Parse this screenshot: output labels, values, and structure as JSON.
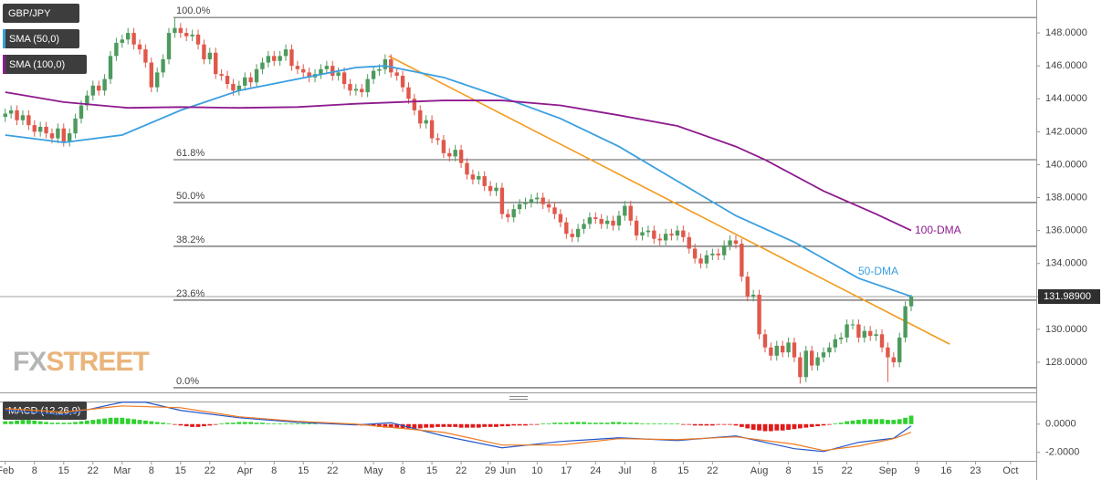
{
  "chart_data": {
    "type": "candlestick",
    "symbol": "GBP/JPY",
    "watermark": [
      "FX",
      "STREET"
    ],
    "up_color": "#4d9a5d",
    "down_color": "#e0584b",
    "xlim": [
      -0.9,
      176.4
    ],
    "xticks": [
      {
        "value": 0,
        "label": "Feb"
      },
      {
        "value": 5,
        "label": "8"
      },
      {
        "value": 10,
        "label": "15"
      },
      {
        "value": 15,
        "label": "22"
      },
      {
        "value": 20,
        "label": "Mar"
      },
      {
        "value": 25,
        "label": "8"
      },
      {
        "value": 30,
        "label": "15"
      },
      {
        "value": 35,
        "label": "22"
      },
      {
        "value": 41,
        "label": "Apr"
      },
      {
        "value": 46,
        "label": "8"
      },
      {
        "value": 51,
        "label": "15"
      },
      {
        "value": 56,
        "label": "22"
      },
      {
        "value": 63,
        "label": "May"
      },
      {
        "value": 68,
        "label": "8"
      },
      {
        "value": 73,
        "label": "15"
      },
      {
        "value": 78,
        "label": "22"
      },
      {
        "value": 83,
        "label": "29"
      },
      {
        "value": 86,
        "label": "Jun"
      },
      {
        "value": 91,
        "label": "10"
      },
      {
        "value": 96,
        "label": "17"
      },
      {
        "value": 101,
        "label": "24"
      },
      {
        "value": 106,
        "label": "Jul"
      },
      {
        "value": 111,
        "label": "8"
      },
      {
        "value": 116,
        "label": "15"
      },
      {
        "value": 121,
        "label": "22"
      },
      {
        "value": 129,
        "label": "Aug"
      },
      {
        "value": 134,
        "label": "8"
      },
      {
        "value": 139,
        "label": "15"
      },
      {
        "value": 144,
        "label": "22"
      },
      {
        "value": 151,
        "label": "Sep"
      },
      {
        "value": 156,
        "label": "9"
      },
      {
        "value": 161,
        "label": "16"
      },
      {
        "value": 166,
        "label": "23"
      },
      {
        "value": 172,
        "label": "Oct"
      }
    ],
    "ylim": [
      126.17,
      150.0
    ],
    "yticks": [
      {
        "value": 128,
        "label": "128.0000"
      },
      {
        "value": 130,
        "label": "130.0000"
      },
      {
        "value": 132,
        "label": "132.0000"
      },
      {
        "value": 134,
        "label": "134.0000"
      },
      {
        "value": 136,
        "label": "136.0000"
      },
      {
        "value": 138,
        "label": "138.0000"
      },
      {
        "value": 140,
        "label": "140.0000"
      },
      {
        "value": 142,
        "label": "142.0000"
      },
      {
        "value": 144,
        "label": "144.0000"
      },
      {
        "value": 146,
        "label": "146.0000"
      },
      {
        "value": 148,
        "label": "148.0000"
      }
    ],
    "open": [
      142.9,
      143.1,
      143.3,
      142.7,
      143.0,
      142.4,
      142.0,
      142.3,
      141.9,
      141.6,
      142.2,
      141.4,
      141.9,
      142.8,
      143.6,
      144.2,
      144.8,
      144.5,
      145.2,
      146.6,
      147.4,
      147.6,
      148.0,
      147.3,
      147.0,
      146.2,
      144.7,
      145.6,
      146.4,
      148.0,
      148.3,
      148.0,
      147.8,
      147.9,
      147.3,
      146.4,
      146.8,
      145.5,
      145.4,
      144.9,
      144.5,
      144.8,
      145.3,
      145.0,
      145.8,
      146.2,
      146.6,
      146.3,
      146.6,
      147.0,
      146.0,
      145.8,
      145.6,
      145.3,
      145.5,
      145.8,
      146.0,
      145.4,
      145.6,
      144.9,
      144.5,
      144.6,
      144.4,
      145.2,
      145.7,
      145.8,
      146.4,
      145.6,
      145.4,
      144.7,
      144.0,
      143.3,
      142.5,
      142.7,
      141.6,
      141.5,
      140.7,
      140.5,
      140.9,
      140.1,
      139.4,
      139.1,
      139.3,
      138.7,
      138.4,
      138.6,
      137.0,
      136.8,
      137.3,
      137.6,
      137.7,
      137.9,
      138.0,
      137.6,
      137.4,
      137.0,
      136.5,
      135.8,
      135.6,
      136.1,
      136.4,
      136.8,
      136.7,
      136.4,
      136.6,
      136.3,
      136.9,
      137.5,
      136.6,
      135.7,
      135.9,
      136.0,
      135.5,
      135.4,
      135.8,
      135.7,
      136.0,
      135.6,
      134.9,
      134.3,
      134.0,
      134.5,
      134.6,
      134.5,
      135.1,
      135.4,
      135.2,
      133.2,
      132.0,
      132.1,
      129.7,
      128.9,
      128.4,
      129.0,
      128.6,
      129.2,
      128.3,
      127.1,
      128.7,
      127.8,
      128.3,
      128.6,
      128.9,
      129.4,
      129.5,
      130.3,
      130.3,
      129.5,
      129.9,
      129.6,
      129.7,
      128.9,
      128.3,
      128.0,
      129.5,
      131.4
    ],
    "high": [
      143.4,
      143.6,
      143.6,
      143.3,
      143.3,
      142.7,
      142.6,
      142.6,
      142.2,
      142.5,
      142.5,
      142.2,
      143.1,
      143.9,
      144.5,
      145.1,
      145.1,
      145.5,
      146.9,
      147.7,
      147.9,
      148.3,
      148.3,
      147.6,
      147.3,
      146.5,
      145.9,
      146.7,
      148.3,
      148.9,
      148.6,
      148.3,
      148.2,
      148.2,
      147.6,
      147.1,
      147.1,
      145.8,
      145.7,
      145.2,
      145.1,
      145.6,
      145.6,
      146.1,
      146.5,
      146.9,
      146.9,
      146.9,
      147.3,
      147.3,
      146.3,
      146.1,
      145.9,
      145.8,
      146.1,
      146.3,
      146.3,
      145.9,
      145.9,
      145.2,
      144.9,
      144.9,
      145.5,
      146.0,
      146.1,
      146.7,
      146.7,
      145.9,
      145.7,
      145.0,
      144.3,
      143.6,
      143.0,
      143.0,
      141.9,
      141.8,
      141.0,
      141.2,
      141.2,
      140.4,
      139.7,
      139.6,
      139.6,
      139.0,
      138.9,
      138.9,
      137.3,
      137.6,
      137.9,
      138.0,
      138.2,
      138.3,
      138.3,
      137.9,
      137.7,
      137.3,
      136.8,
      136.1,
      136.4,
      136.7,
      137.1,
      137.1,
      137.0,
      136.9,
      136.9,
      137.2,
      137.8,
      137.8,
      136.9,
      136.2,
      136.3,
      136.3,
      135.8,
      136.1,
      136.1,
      136.3,
      136.3,
      135.9,
      135.2,
      134.6,
      134.8,
      134.9,
      134.9,
      135.4,
      135.7,
      135.7,
      135.5,
      133.5,
      132.4,
      132.4,
      130.0,
      129.2,
      129.3,
      129.3,
      129.5,
      129.5,
      128.6,
      129.0,
      129.0,
      128.6,
      128.9,
      129.2,
      129.7,
      129.8,
      130.6,
      130.6,
      130.6,
      130.2,
      130.2,
      130.0,
      130.0,
      129.2,
      128.6,
      129.8,
      131.7,
      132.1
    ],
    "low": [
      142.6,
      142.8,
      142.4,
      142.4,
      142.1,
      141.7,
      141.7,
      141.6,
      141.3,
      141.3,
      141.1,
      141.1,
      141.6,
      142.5,
      143.3,
      143.9,
      144.2,
      144.2,
      144.9,
      146.3,
      147.1,
      147.3,
      147.0,
      146.7,
      145.9,
      144.4,
      144.4,
      145.3,
      146.1,
      147.7,
      147.7,
      147.5,
      147.5,
      147.0,
      146.1,
      146.1,
      145.2,
      145.1,
      144.6,
      144.2,
      144.2,
      144.5,
      144.7,
      144.7,
      145.5,
      145.9,
      146.0,
      146.0,
      146.3,
      145.7,
      145.5,
      145.3,
      145.0,
      145.0,
      145.2,
      145.5,
      145.1,
      145.1,
      144.6,
      144.2,
      144.2,
      144.1,
      144.1,
      144.9,
      145.4,
      145.5,
      145.3,
      145.1,
      144.4,
      143.7,
      143.0,
      142.2,
      142.2,
      141.3,
      141.2,
      140.4,
      140.2,
      140.2,
      139.8,
      139.1,
      138.8,
      138.8,
      138.4,
      138.1,
      138.1,
      136.7,
      136.5,
      136.5,
      137.0,
      137.3,
      137.4,
      137.6,
      137.3,
      137.1,
      136.7,
      136.2,
      135.5,
      135.3,
      135.3,
      135.8,
      136.1,
      136.4,
      136.1,
      136.1,
      136.0,
      136.0,
      136.6,
      136.3,
      135.4,
      135.4,
      135.6,
      135.2,
      135.1,
      135.1,
      135.4,
      135.4,
      135.3,
      134.6,
      134.0,
      133.7,
      133.7,
      134.2,
      134.2,
      134.2,
      134.8,
      134.9,
      132.9,
      131.7,
      131.7,
      129.4,
      128.6,
      128.1,
      128.1,
      128.3,
      128.3,
      128.0,
      126.7,
      126.8,
      127.5,
      127.5,
      128.0,
      128.3,
      128.6,
      129.1,
      129.2,
      130.0,
      129.2,
      129.2,
      129.3,
      129.3,
      128.6,
      126.8,
      127.7,
      127.7,
      129.2,
      131.1
    ],
    "close": [
      143.1,
      143.3,
      142.7,
      143.0,
      142.4,
      142.0,
      142.3,
      141.9,
      141.6,
      142.2,
      141.4,
      141.9,
      142.8,
      143.6,
      144.2,
      144.8,
      144.5,
      145.2,
      146.6,
      147.4,
      147.6,
      148.0,
      147.3,
      147.0,
      146.2,
      144.7,
      145.6,
      146.4,
      148.0,
      148.3,
      148.0,
      147.8,
      147.9,
      147.3,
      146.4,
      146.8,
      145.5,
      145.4,
      144.9,
      144.5,
      144.8,
      145.3,
      145.0,
      145.8,
      146.2,
      146.6,
      146.3,
      146.6,
      147.0,
      146.0,
      145.8,
      145.6,
      145.3,
      145.5,
      145.8,
      146.0,
      145.4,
      145.6,
      144.9,
      144.5,
      144.6,
      144.4,
      145.2,
      145.7,
      145.8,
      146.4,
      145.6,
      145.4,
      144.7,
      144.0,
      143.3,
      142.5,
      142.7,
      141.6,
      141.5,
      140.7,
      140.5,
      140.9,
      140.1,
      139.4,
      139.1,
      139.3,
      138.7,
      138.4,
      138.6,
      137.0,
      136.8,
      137.3,
      137.6,
      137.7,
      137.9,
      138.0,
      137.6,
      137.4,
      137.0,
      136.5,
      135.8,
      135.6,
      136.1,
      136.4,
      136.8,
      136.7,
      136.4,
      136.6,
      136.3,
      136.9,
      137.5,
      136.6,
      135.7,
      135.9,
      136.0,
      135.5,
      135.4,
      135.8,
      135.7,
      136.0,
      135.6,
      134.9,
      134.3,
      134.0,
      134.5,
      134.6,
      134.5,
      135.1,
      135.4,
      135.2,
      133.2,
      132.0,
      132.1,
      129.7,
      128.9,
      128.4,
      129.0,
      128.6,
      129.2,
      128.3,
      127.1,
      128.7,
      127.8,
      128.3,
      128.6,
      128.9,
      129.4,
      129.5,
      130.3,
      130.3,
      129.5,
      129.9,
      129.6,
      129.7,
      128.9,
      128.3,
      128.0,
      129.5,
      131.4,
      131.99
    ],
    "series": [
      {
        "name": "SMA (50,0)",
        "label": "50-DMA",
        "color": "#3a9fe0",
        "x": [
          0,
          10,
          20,
          30,
          40,
          50,
          60,
          65,
          75,
          85,
          95,
          105,
          115,
          125,
          135,
          146,
          155
        ],
        "values": [
          141.8,
          141.35,
          141.8,
          143.3,
          144.5,
          145.2,
          145.9,
          146.0,
          145.3,
          144.1,
          142.8,
          141.1,
          139.0,
          136.9,
          135.3,
          133.1,
          132.0
        ]
      },
      {
        "name": "SMA (100,0)",
        "label": "100-DMA",
        "color": "#8e1a8e",
        "x": [
          0,
          10,
          21,
          30,
          40,
          50,
          60,
          75,
          85,
          95,
          105,
          115,
          125,
          130,
          140,
          149,
          155
        ],
        "values": [
          144.4,
          143.8,
          143.45,
          143.5,
          143.45,
          143.5,
          143.7,
          143.9,
          143.9,
          143.6,
          143.0,
          142.35,
          141.1,
          140.3,
          138.4,
          137.0,
          136.0
        ]
      }
    ],
    "trendline": {
      "color": "#f39a1e",
      "x": [
        65.6,
        161.6
      ],
      "values": [
        146.6,
        129.1
      ]
    },
    "fib_levels": [
      {
        "label": "100.0%",
        "value": 148.94
      },
      {
        "label": "61.8%",
        "value": 140.3
      },
      {
        "label": "50.0%",
        "value": 137.7
      },
      {
        "label": "38.2%",
        "value": 135.04
      },
      {
        "label": "23.6%",
        "value": 131.77
      },
      {
        "label": "0.0%",
        "value": 126.45
      }
    ],
    "last_price": {
      "value": 131.989,
      "label": "131.98900"
    },
    "macd": {
      "label": "MACD (12,26,9)",
      "ylim": [
        -2.6,
        1.6
      ],
      "yticks": [
        {
          "value": 0,
          "label": "0.0000"
        },
        {
          "value": -2,
          "label": "-2.0000"
        }
      ],
      "up_color": "#2fd12f",
      "down_color": "#e01a1a",
      "histogram": [
        0.2,
        0.2,
        0.25,
        0.3,
        0.3,
        0.25,
        0.2,
        0.15,
        0.1,
        0.1,
        0.1,
        0.1,
        0.15,
        0.2,
        0.25,
        0.3,
        0.35,
        0.4,
        0.45,
        0.45,
        0.45,
        0.4,
        0.35,
        0.3,
        0.25,
        0.2,
        0.15,
        0.1,
        0.05,
        -0.05,
        -0.1,
        -0.15,
        -0.2,
        -0.2,
        -0.15,
        -0.1,
        -0.05,
        0.05,
        0.1,
        0.1,
        0.15,
        0.15,
        0.15,
        0.1,
        0.1,
        0.05,
        0.05,
        0.05,
        0.05,
        0.05,
        0.05,
        0.05,
        0.05,
        0.05,
        0,
        0,
        0.05,
        0.05,
        0.05,
        -0.05,
        -0.05,
        -0.1,
        -0.1,
        -0.15,
        -0.2,
        -0.25,
        -0.25,
        -0.3,
        -0.3,
        -0.3,
        -0.3,
        -0.3,
        -0.25,
        -0.25,
        -0.2,
        -0.2,
        -0.2,
        -0.2,
        -0.25,
        -0.25,
        -0.25,
        -0.25,
        -0.2,
        -0.2,
        -0.2,
        -0.15,
        -0.15,
        -0.1,
        -0.1,
        -0.1,
        -0.05,
        -0.05,
        0.05,
        0.05,
        0.1,
        0.1,
        0.1,
        0.15,
        0.15,
        0.15,
        0.1,
        0.1,
        0.1,
        0.1,
        0.15,
        0.15,
        0.1,
        0.1,
        0.1,
        0.05,
        0.05,
        0.05,
        0.05,
        0.05,
        0.05,
        0.05,
        -0.05,
        -0.05,
        -0.1,
        -0.1,
        -0.1,
        -0.1,
        -0.05,
        -0.05,
        -0.05,
        -0.1,
        -0.2,
        -0.3,
        -0.4,
        -0.45,
        -0.5,
        -0.5,
        -0.45,
        -0.45,
        -0.4,
        -0.35,
        -0.3,
        -0.25,
        -0.2,
        -0.15,
        -0.1,
        -0.05,
        0.05,
        0.1,
        0.2,
        0.25,
        0.3,
        0.35,
        0.35,
        0.35,
        0.35,
        0.3,
        0.3,
        0.35,
        0.45,
        0.6
      ],
      "series": [
        {
          "color": "#2456c8",
          "x": [
            0,
            10,
            20,
            24,
            30,
            40,
            50,
            60,
            66,
            75,
            85,
            95,
            105,
            115,
            125,
            135,
            140,
            146,
            152,
            155
          ],
          "values": [
            1.0,
            0.65,
            1.55,
            1.55,
            0.97,
            0.45,
            0.13,
            -0.06,
            0.1,
            -0.84,
            -1.68,
            -1.23,
            -0.97,
            -1.16,
            -0.84,
            -1.74,
            -1.94,
            -1.29,
            -1.0,
            -0.13
          ]
        },
        {
          "color": "#ee7a22",
          "x": [
            0,
            10,
            20,
            30,
            40,
            50,
            60,
            75,
            85,
            95,
            105,
            115,
            125,
            135,
            140,
            146,
            152,
            155
          ],
          "values": [
            1.1,
            0.85,
            1.29,
            1.16,
            0.52,
            0.2,
            0,
            -0.58,
            -1.48,
            -1.48,
            -1.03,
            -1.1,
            -0.9,
            -1.42,
            -1.87,
            -1.55,
            -1.03,
            -0.58
          ]
        }
      ]
    }
  }
}
